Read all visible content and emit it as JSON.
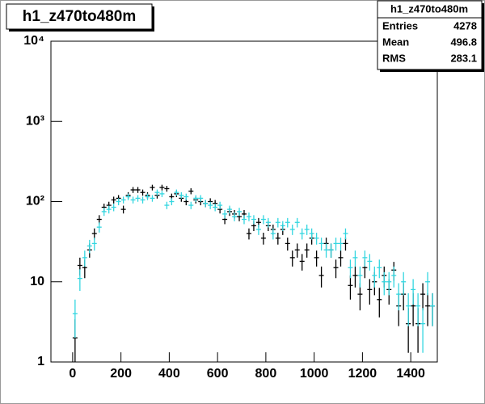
{
  "chart_data": {
    "type": "errorbar",
    "title": "h1_z470to480m",
    "stats": {
      "title": "h1_z470to480m",
      "rows": [
        [
          "Entries",
          4278
        ],
        [
          "Mean",
          496.8
        ],
        [
          "RMS",
          283.1
        ]
      ]
    },
    "x": [
      10,
      30,
      50,
      70,
      90,
      110,
      130,
      150,
      170,
      190,
      210,
      230,
      250,
      270,
      290,
      310,
      330,
      350,
      370,
      390,
      410,
      430,
      450,
      470,
      490,
      510,
      530,
      550,
      570,
      590,
      610,
      630,
      650,
      670,
      690,
      710,
      730,
      750,
      770,
      790,
      810,
      830,
      850,
      870,
      890,
      910,
      930,
      950,
      970,
      990,
      1010,
      1030,
      1050,
      1070,
      1090,
      1110,
      1130,
      1150,
      1170,
      1190,
      1210,
      1230,
      1250,
      1270,
      1290,
      1310,
      1330,
      1350,
      1370,
      1390,
      1410,
      1430,
      1450,
      1470,
      1490
    ],
    "series": [
      {
        "color": "#000000",
        "values": [
          2,
          16,
          15,
          25,
          40,
          60,
          85,
          90,
          105,
          110,
          80,
          120,
          140,
          140,
          130,
          120,
          150,
          120,
          150,
          145,
          115,
          125,
          110,
          100,
          135,
          105,
          100,
          95,
          100,
          95,
          80,
          60,
          75,
          70,
          65,
          70,
          40,
          50,
          55,
          35,
          50,
          45,
          35,
          45,
          30,
          20,
          25,
          18,
          25,
          35,
          20,
          12,
          30,
          25,
          15,
          20,
          30,
          9,
          12,
          7,
          15,
          8,
          10,
          6,
          12,
          8,
          14,
          5,
          7,
          3,
          5,
          3,
          7,
          5,
          5
        ],
        "errors": [
          1.4,
          4,
          3.9,
          5,
          6.3,
          7.7,
          9.2,
          9.5,
          10.2,
          10.5,
          8.9,
          11,
          11.8,
          11.8,
          11.4,
          11,
          12.2,
          11,
          12.2,
          12,
          10.7,
          11.2,
          10.5,
          10,
          11.6,
          10.2,
          10,
          9.7,
          10,
          9.7,
          8.9,
          7.7,
          8.7,
          8.4,
          8.1,
          8.4,
          6.3,
          7.1,
          7.4,
          5.9,
          7.1,
          6.7,
          5.9,
          6.7,
          5.5,
          4.5,
          5,
          4.2,
          5,
          5.9,
          4.5,
          3.5,
          5.5,
          5,
          3.9,
          4.5,
          5.5,
          3,
          3.5,
          2.6,
          3.9,
          2.8,
          3.2,
          2.4,
          3.5,
          2.8,
          3.7,
          2.2,
          2.6,
          1.7,
          2.2,
          1.7,
          2.6,
          2.2,
          2.2
        ]
      },
      {
        "color": "#33d6e0",
        "values": [
          4,
          11,
          20,
          28,
          30,
          48,
          75,
          80,
          85,
          100,
          105,
          115,
          105,
          110,
          105,
          115,
          110,
          130,
          125,
          90,
          100,
          130,
          120,
          115,
          90,
          110,
          110,
          95,
          90,
          85,
          90,
          70,
          80,
          65,
          75,
          60,
          65,
          60,
          45,
          60,
          55,
          40,
          55,
          50,
          55,
          45,
          55,
          40,
          45,
          40,
          35,
          30,
          25,
          25,
          30,
          30,
          40,
          15,
          20,
          12,
          20,
          18,
          12,
          15,
          10,
          10,
          12,
          7,
          10,
          5,
          8,
          5,
          3,
          10,
          5
        ],
        "errors": [
          2,
          3.3,
          4.5,
          5.3,
          5.5,
          6.9,
          8.7,
          8.9,
          9.2,
          10,
          10.2,
          10.7,
          10.2,
          10.5,
          10.2,
          10.7,
          10.5,
          11.4,
          11.2,
          9.5,
          10,
          11.4,
          11,
          10.7,
          9.5,
          10.5,
          10.5,
          9.7,
          9.5,
          9.2,
          9.5,
          8.4,
          8.9,
          8.1,
          8.7,
          7.7,
          8.1,
          7.7,
          6.7,
          7.7,
          7.4,
          6.3,
          7.4,
          7.1,
          7.4,
          6.7,
          7.4,
          6.3,
          6.7,
          6.3,
          5.9,
          5.5,
          5,
          5,
          5.5,
          5.5,
          6.3,
          3.9,
          4.5,
          3.5,
          4.5,
          4.2,
          3.5,
          3.9,
          3.2,
          3.2,
          3.5,
          2.6,
          3.2,
          2.2,
          2.8,
          2.2,
          1.7,
          3.2,
          2.2
        ]
      }
    ],
    "xlim": [
      -90,
      1510
    ],
    "xticks": [
      0,
      200,
      400,
      600,
      800,
      1000,
      1200,
      1400
    ],
    "ylim": [
      1,
      10000
    ],
    "log_y": true,
    "yticks": [
      1,
      10,
      {
        "value": 100,
        "label": "10²"
      },
      {
        "value": 1000,
        "label": "10³"
      },
      {
        "value": 10000,
        "label": "10⁴"
      }
    ]
  }
}
